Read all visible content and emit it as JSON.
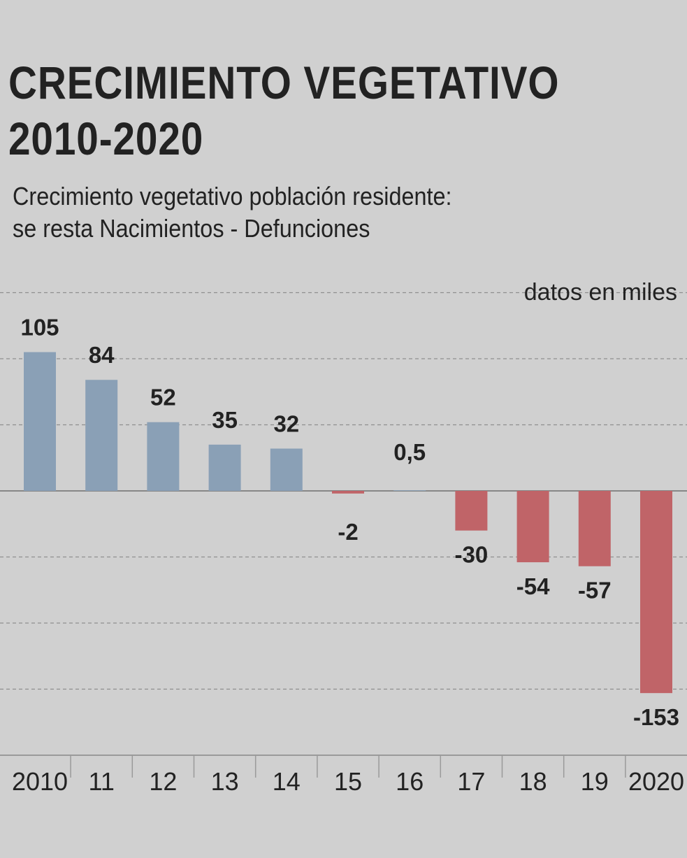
{
  "chart_data": {
    "type": "bar",
    "title": "CRECIMIENTO VEGETATIVO 2010-2020",
    "title_lines": [
      "CRECIMIENTO VEGETATIVO",
      "2010-2020"
    ],
    "subtitle": "Crecimiento vegetativo población residente: se resta Nacimientos - Defunciones",
    "subtitle_lines": [
      "Crecimiento vegetativo población residente:",
      "se resta Nacimientos - Defunciones"
    ],
    "units_note": "datos en miles",
    "categories": [
      "2010",
      "11",
      "12",
      "13",
      "14",
      "15",
      "16",
      "17",
      "18",
      "19",
      "2020"
    ],
    "values": [
      105,
      84,
      52,
      35,
      32,
      -2,
      0.5,
      -30,
      -54,
      -57,
      -153
    ],
    "value_labels": [
      "105",
      "84",
      "52",
      "35",
      "32",
      "-2",
      "0,5",
      "-30",
      "-54",
      "-57",
      "-153"
    ],
    "xlabel": "",
    "ylabel": "",
    "ylim": [
      -200,
      150
    ],
    "gridlines": [
      150,
      100,
      50,
      -50,
      -100,
      -150
    ],
    "grid": true,
    "colors": {
      "positive": "#8aa0b6",
      "negative": "#c06468",
      "background": "#d0d0d0",
      "text": "#222222",
      "grid": "#8f8f8f",
      "axis": "#9a9a9a"
    }
  }
}
